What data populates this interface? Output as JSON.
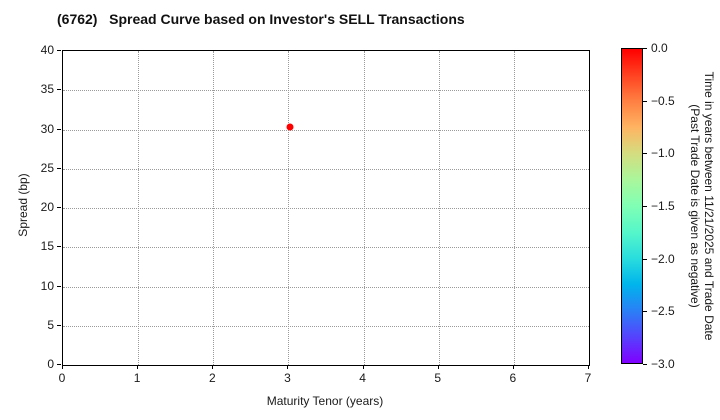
{
  "chart_data": {
    "type": "scatter",
    "title": "(6762)   Spread Curve based on Investor's SELL Transactions",
    "xlabel": "Maturity Tenor (years)",
    "ylabel": "Spread (bp)",
    "xlim": [
      0,
      7
    ],
    "ylim": [
      0,
      40
    ],
    "xticks": [
      0,
      1,
      2,
      3,
      4,
      5,
      6,
      7
    ],
    "yticks": [
      0,
      5,
      10,
      15,
      20,
      25,
      30,
      35,
      40
    ],
    "grid": true,
    "grid_style": "dotted",
    "series": [
      {
        "name": "sell-transactions",
        "points": [
          {
            "x": 3.02,
            "y": 30.3,
            "time_years": 0.0,
            "color": "#ff0000"
          }
        ]
      }
    ],
    "colorbar": {
      "title_lines": [
        "Time in years between 11/21/2025 and Trade Date",
        "(Past Trade Date is given as negative)"
      ],
      "tick_labels": [
        "0.0",
        "−0.5",
        "−1.0",
        "−1.5",
        "−2.0",
        "−2.5",
        "−3.0"
      ],
      "tick_values": [
        0.0,
        -0.5,
        -1.0,
        -1.5,
        -2.0,
        -2.5,
        -3.0
      ],
      "vmax": 0.0,
      "vmin": -3.0,
      "colormap": "rainbow",
      "gradient_stops_top_to_bottom": [
        "#ff0000",
        "#ff4221",
        "#ff8042",
        "#ffb462",
        "#d4dd80",
        "#aaf69b",
        "#80ffb4",
        "#55f6ca",
        "#2adddd",
        "#00b4ec",
        "#2a80f6",
        "#5542fd",
        "#8000ff"
      ]
    }
  }
}
